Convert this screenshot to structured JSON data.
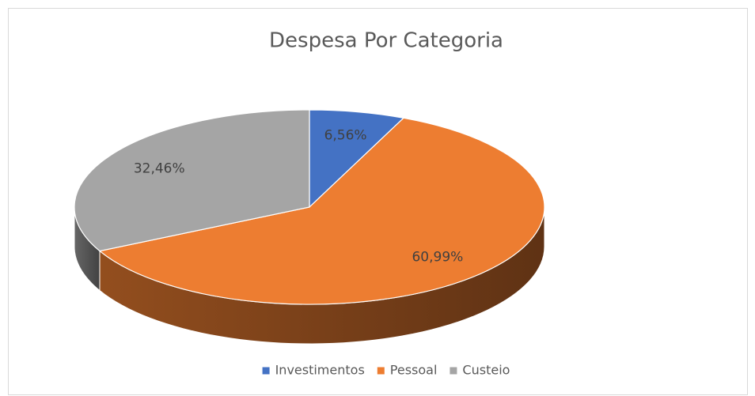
{
  "chart_data": {
    "type": "pie3d",
    "title": "Despesa Por Categoria",
    "categories": [
      "Investimentos",
      "Pessoal",
      "Custeio"
    ],
    "values": [
      6.56,
      60.99,
      32.46
    ],
    "value_labels": [
      "6,56%",
      "60,99%",
      "32,46%"
    ],
    "colors": [
      "#4472c4",
      "#ed7d31",
      "#a5a5a5"
    ],
    "legend": "bottom"
  }
}
